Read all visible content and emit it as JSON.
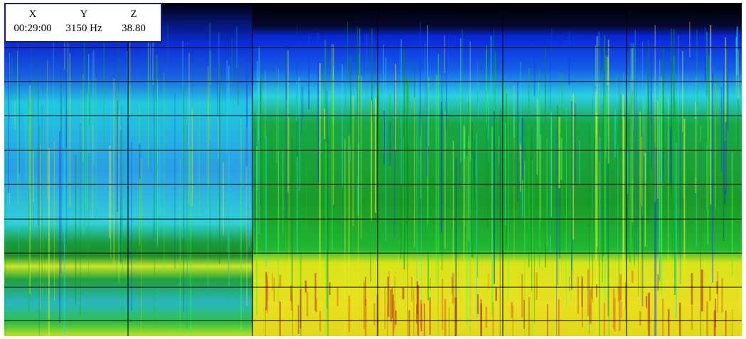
{
  "readout": {
    "headers": [
      "X",
      "Y",
      "Z"
    ],
    "values": [
      "00:29:00",
      "3150 Hz",
      "38.80"
    ]
  }
}
